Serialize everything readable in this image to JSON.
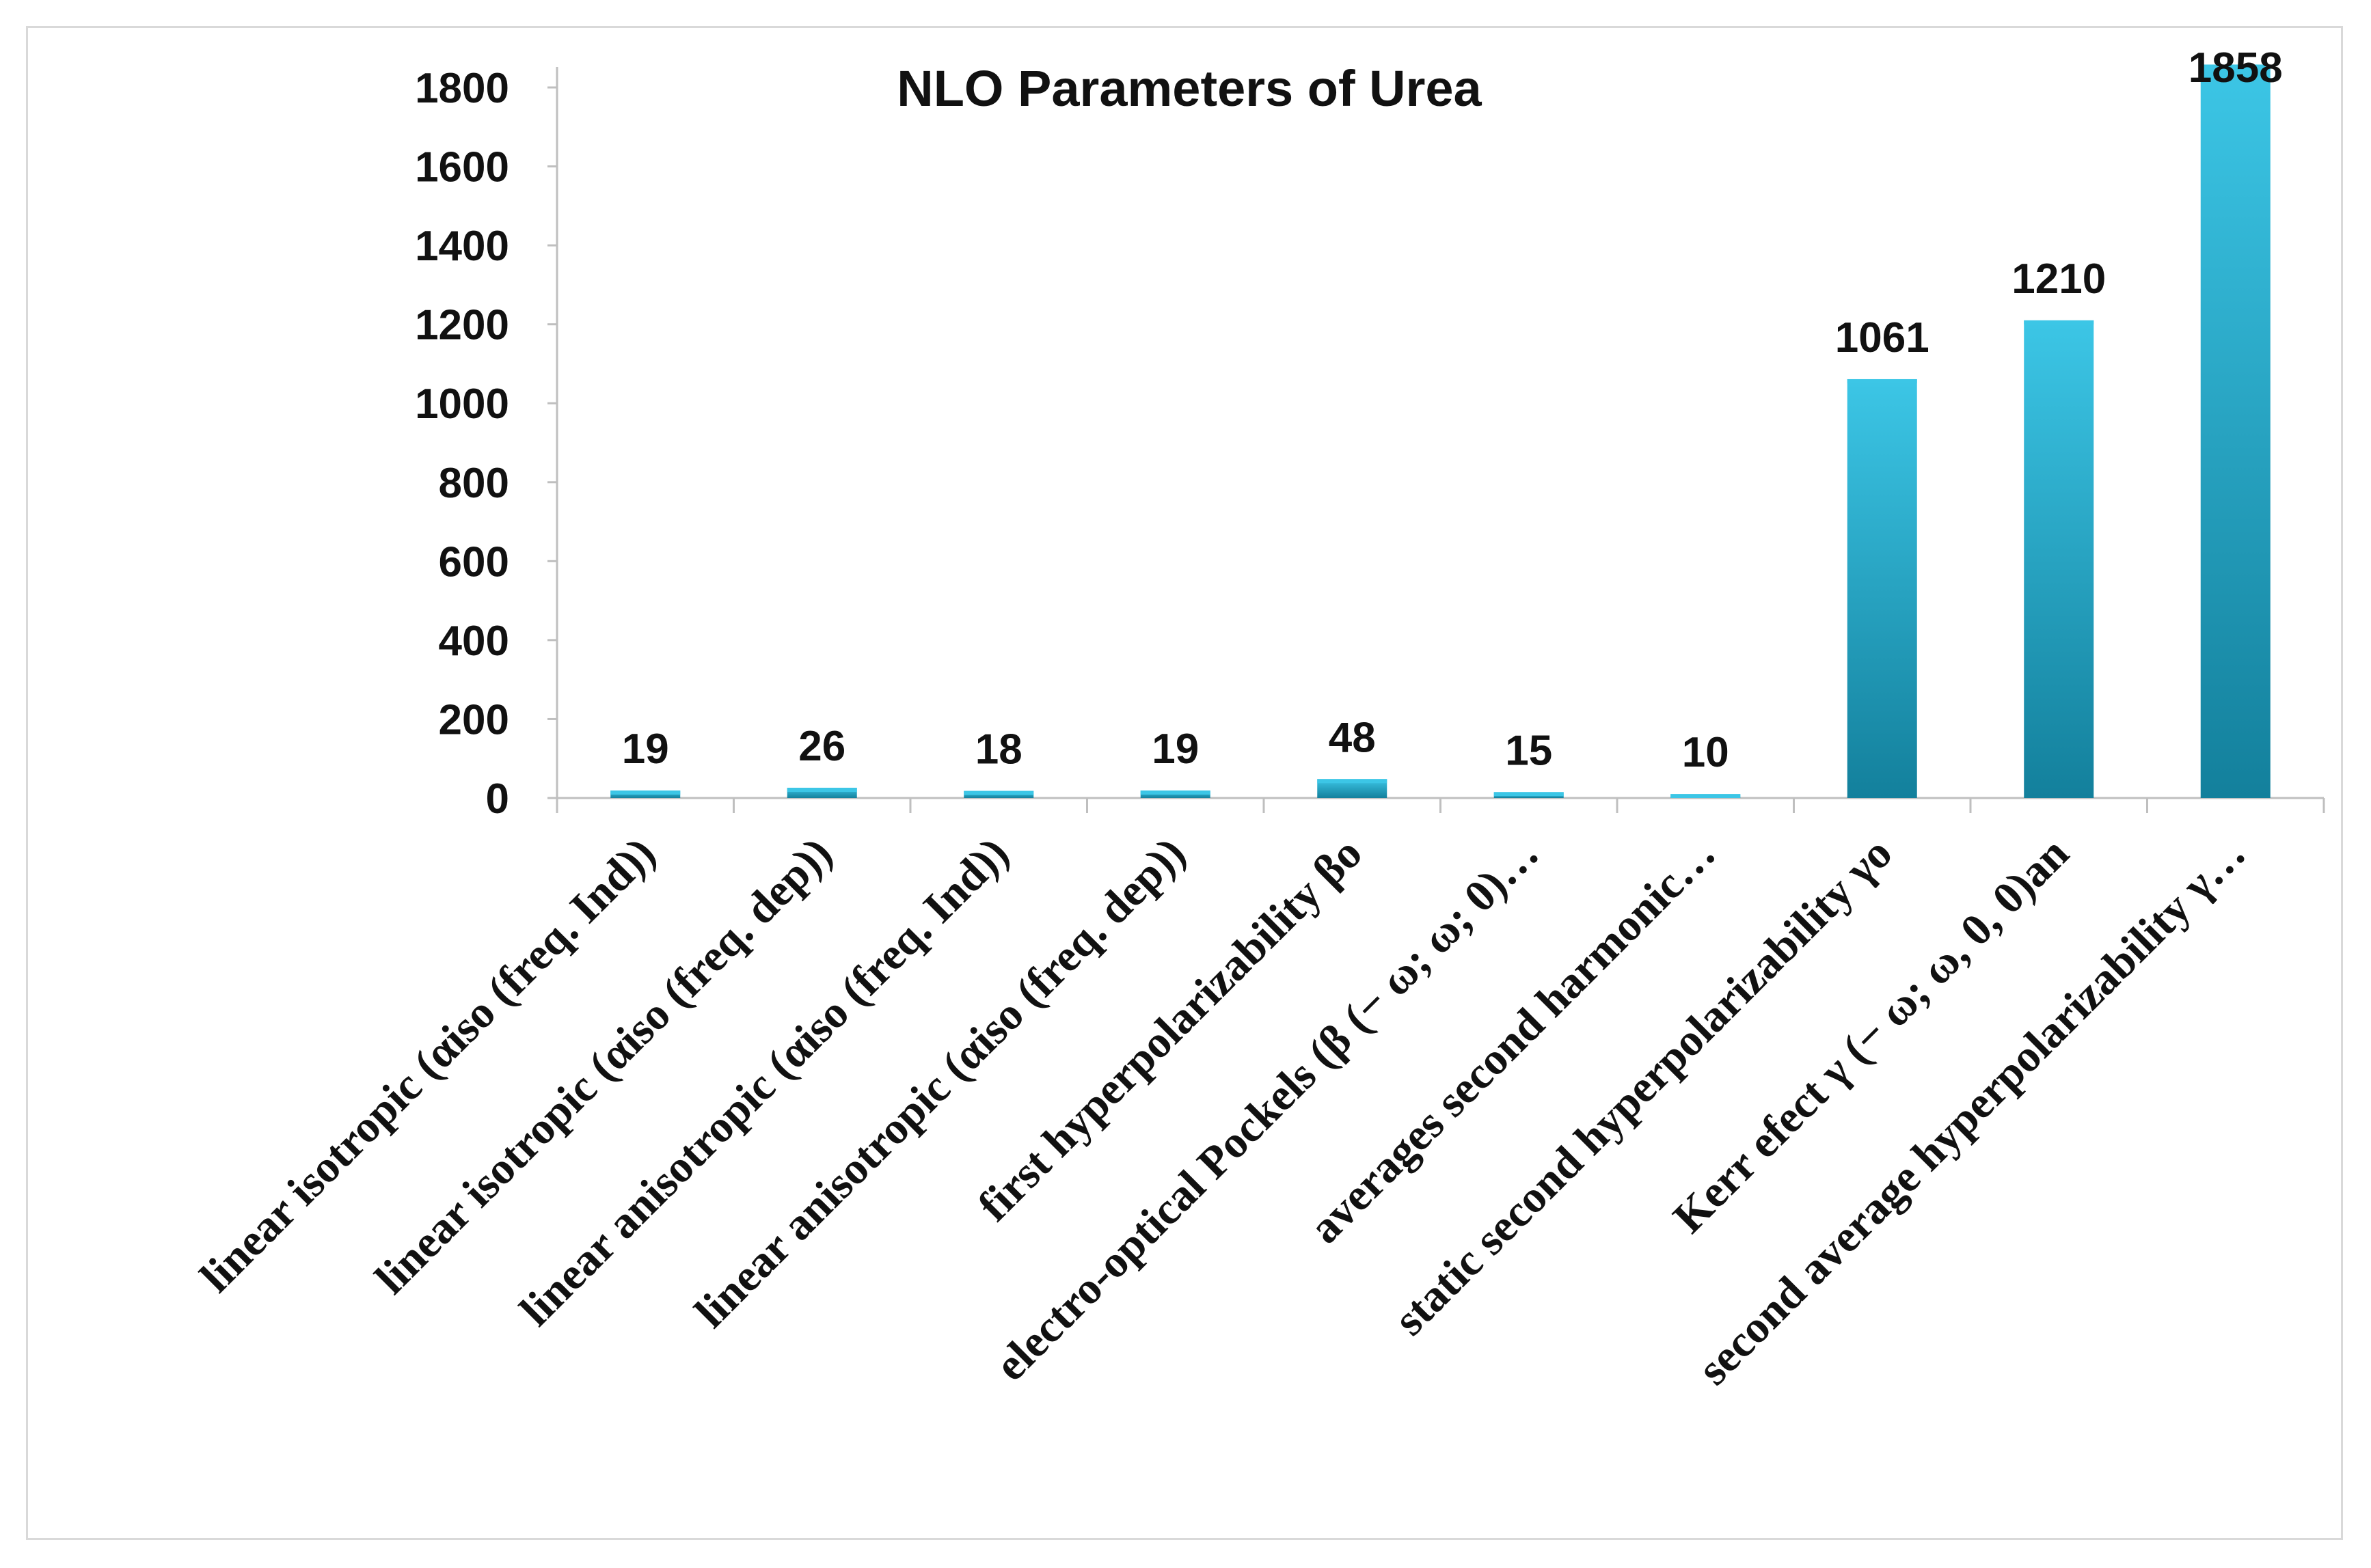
{
  "chart_data": {
    "type": "bar",
    "title": "NLO Parameters of Urea",
    "xlabel": "",
    "ylabel": "",
    "ylim": [
      0,
      1800
    ],
    "yticks": [
      0,
      200,
      400,
      600,
      800,
      1000,
      1200,
      1400,
      1600,
      1800
    ],
    "grid": false,
    "legend": "none",
    "categories": [
      "linear isotropic (αiso (freq. Ind))",
      "linear isotropic (αiso (freq. dep))",
      "linear anisotropic (αiso (freq. Ind))",
      "linear anisotropic (αiso (freq. dep))",
      "first hyperpolarizability βo",
      "electro-optical Pockels (β (− ω; ω; 0)…",
      "averages second harmonic…",
      "static second hyperpolarizability γo",
      "Kerr efect γ (− ω; ω, 0, 0)an",
      "second average hyperpolarizability γ…"
    ],
    "values": [
      19,
      26,
      18,
      19,
      48,
      15,
      10,
      1061,
      1210,
      1858
    ],
    "data_labels": [
      "19",
      "26",
      "18",
      "19",
      "48",
      "15",
      "10",
      "1061",
      "1210",
      "1858"
    ],
    "bar_color": "#1aa3c4",
    "bar_color_light": "#3cc6e6",
    "bar_color_dark": "#13809c",
    "axis_color": "#bfbfbf"
  }
}
